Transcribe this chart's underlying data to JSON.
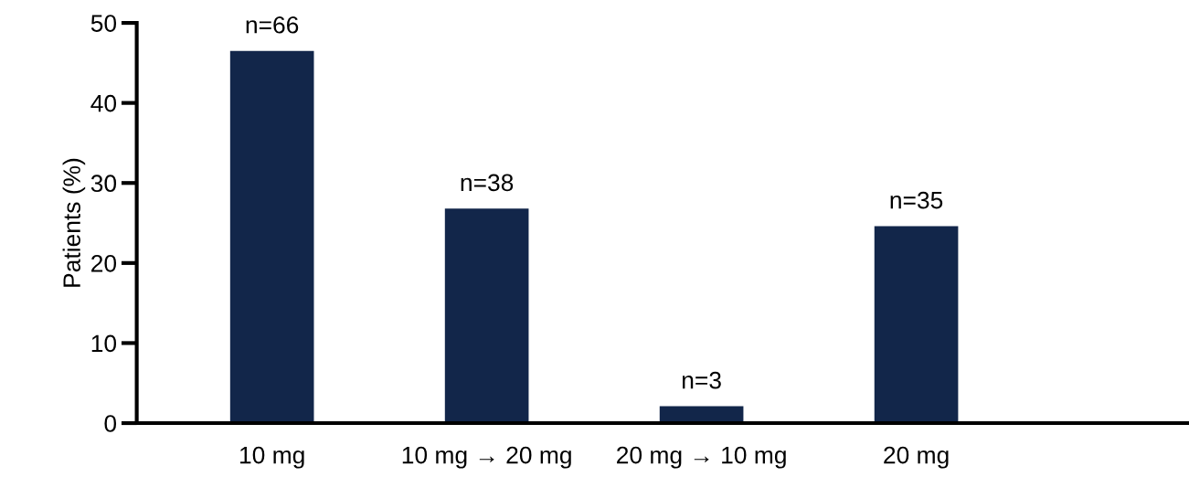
{
  "chart_data": {
    "type": "bar",
    "ylabel": "Patients (%)",
    "categories": [
      "10 mg",
      "10 mg → 20 mg",
      "20 mg → 10 mg",
      "20 mg"
    ],
    "values": [
      46.5,
      26.8,
      2.1,
      24.6
    ],
    "annotations": [
      {
        "text": "n=66",
        "x": "10 mg",
        "y": 46.5
      },
      {
        "text": "n=38",
        "x": "10 mg → 20 mg",
        "y": 26.8
      },
      {
        "text": "n=3",
        "x": "20 mg → 10 mg",
        "y": 2.1
      },
      {
        "text": "n=35",
        "x": "20 mg",
        "y": 24.6
      }
    ],
    "color": "#12264a",
    "ylim": [
      0,
      50
    ],
    "yticks": [
      0,
      10,
      20,
      30,
      40,
      50
    ],
    "grid": false,
    "legend": false
  }
}
